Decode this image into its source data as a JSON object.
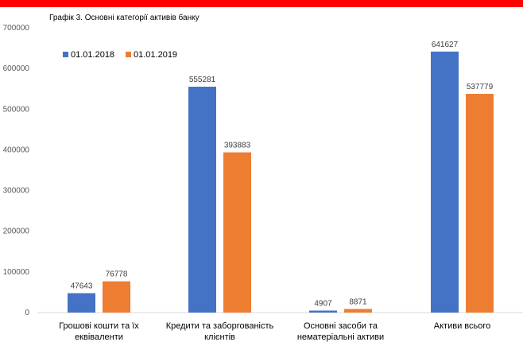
{
  "chart_data": {
    "type": "bar",
    "title": "Графік 3. Основні категорії активів банку",
    "xlabel": "",
    "ylabel": "",
    "ylim": [
      0,
      700000
    ],
    "yticks": [
      "0",
      "100000",
      "200000",
      "300000",
      "400000",
      "500000",
      "600000",
      "700000"
    ],
    "grid": false,
    "legend_position": "top-left",
    "categories": [
      [
        "Грошові кошти та їх",
        "еквіваленти"
      ],
      [
        "Кредити та заборгованість",
        "клієнтів"
      ],
      [
        "Основні засоби та",
        "нематеріальні активи"
      ],
      [
        "Активи всього"
      ]
    ],
    "series": [
      {
        "name": "01.01.2018",
        "color": "#4472c4",
        "values": [
          47643,
          555281,
          4907,
          641627
        ]
      },
      {
        "name": "01.01.2019",
        "color": "#ed7d31",
        "values": [
          76778,
          393883,
          8871,
          537779
        ]
      }
    ]
  }
}
